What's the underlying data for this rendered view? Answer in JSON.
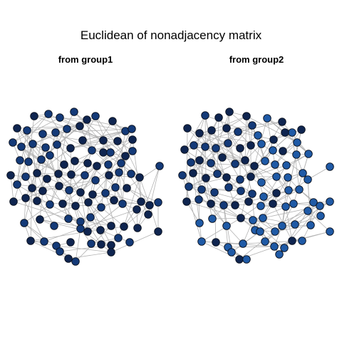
{
  "figure": {
    "title": "Euclidean of nonadjacency matrix"
  },
  "panels": [
    {
      "id": "group1",
      "title": "from group1"
    },
    {
      "id": "group2",
      "title": "from group2"
    }
  ],
  "colors": {
    "edge": "#b3b3b3",
    "node_dark": "#0f2550",
    "node_mid": "#143a78",
    "node_light": "#1f5aa6",
    "node_border": "#0b1220"
  }
}
